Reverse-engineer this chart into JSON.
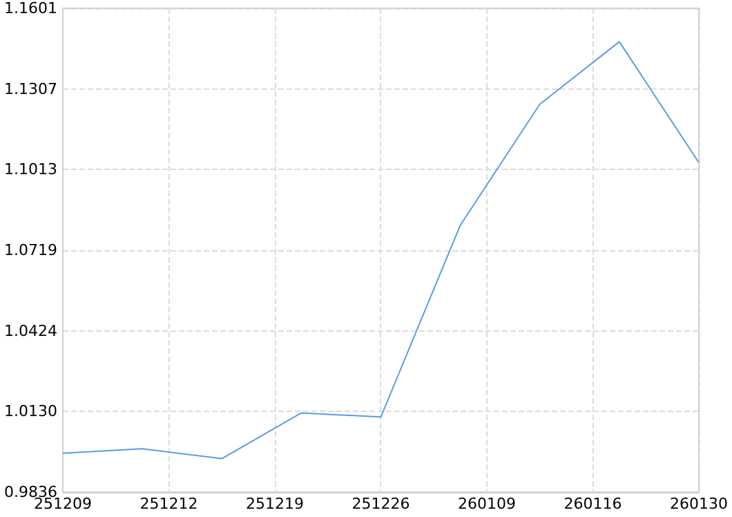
{
  "chart_data": {
    "type": "line",
    "categories": [
      "251209",
      null,
      null,
      null,
      "251212",
      null,
      null,
      null,
      "251219",
      null,
      null,
      null,
      "251226",
      null,
      null,
      null,
      "260109",
      null,
      null,
      null,
      "260116",
      null,
      null,
      null,
      "260130"
    ],
    "series": [
      {
        "color": "#5b9be6",
        "values": [
          0.9978,
          null,
          null,
          0.9994,
          null,
          null,
          0.9958,
          null,
          null,
          1.0125,
          null,
          null,
          1.011,
          null,
          null,
          1.081,
          null,
          null,
          1.1251,
          null,
          null,
          1.1479,
          null,
          null,
          1.1038
        ]
      }
    ],
    "ylim": [
      0.9836,
      1.1601
    ],
    "yticks": [
      0.9836,
      {
        "value": 1.013,
        "label": "1.0130"
      },
      1.0424,
      1.0719,
      1.1013,
      1.1307,
      1.1601
    ],
    "grid": true,
    "marker": "none",
    "line_style": "solid"
  }
}
